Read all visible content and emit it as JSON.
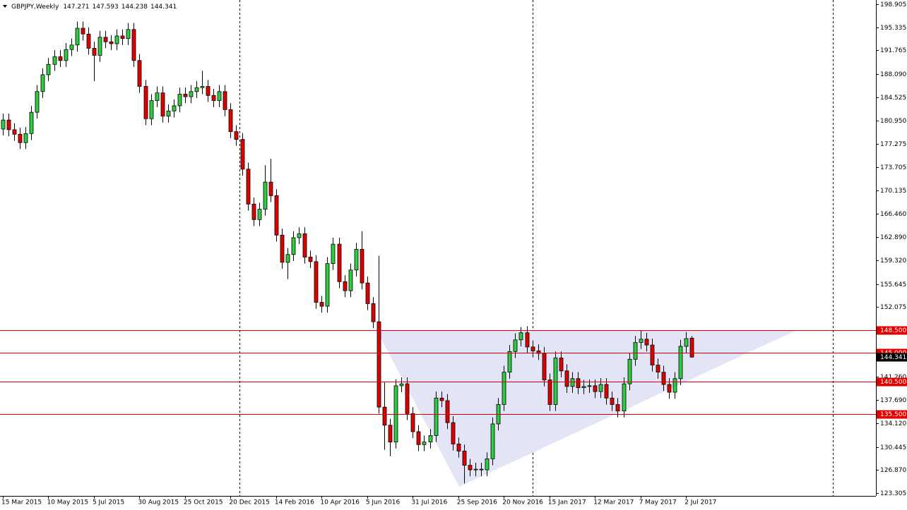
{
  "chart_data": {
    "type": "candlestick",
    "title": "GBPJPY,Weekly",
    "categories": [
      "15 Mar 2015",
      null,
      null,
      null,
      null,
      null,
      null,
      null,
      "10 May 2015",
      null,
      null,
      null,
      null,
      null,
      null,
      null,
      "5 Jul 2015",
      null,
      null,
      null,
      null,
      null,
      null,
      null,
      "30 Aug 2015",
      null,
      null,
      null,
      null,
      null,
      null,
      null,
      "25 Oct 2015",
      null,
      null,
      null,
      null,
      null,
      null,
      null,
      "20 Dec 2015",
      null,
      null,
      null,
      null,
      null,
      null,
      null,
      "14 Feb 2016",
      null,
      null,
      null,
      null,
      null,
      null,
      null,
      "10 Apr 2016",
      null,
      null,
      null,
      null,
      null,
      null,
      null,
      "5 Jun 2016",
      null,
      null,
      null,
      null,
      null,
      null,
      null,
      "31 Jul 2016",
      null,
      null,
      null,
      null,
      null,
      null,
      null,
      "25 Sep 2016",
      null,
      null,
      null,
      null,
      null,
      null,
      null,
      "20 Nov 2016",
      null,
      null,
      null,
      null,
      null,
      null,
      null,
      "15 Jan 2017",
      null,
      null,
      null,
      null,
      null,
      null,
      null,
      "12 Mar 2017",
      null,
      null,
      null,
      null,
      null,
      null,
      null,
      "7 May 2017",
      null,
      null,
      null,
      null,
      null,
      null,
      null,
      "2 Jul 2017",
      null
    ],
    "open": [
      179.6,
      181.0,
      179.5,
      178.8,
      177.5,
      178.9,
      182.2,
      185.4,
      188.0,
      189.6,
      190.8,
      190.2,
      191.9,
      192.6,
      195.2,
      194.3,
      192.1,
      191.0,
      193.8,
      193.1,
      192.8,
      194.0,
      193.6,
      195.0,
      190.2,
      186.2,
      181.2,
      184.0,
      185.2,
      181.6,
      182.4,
      183.2,
      185.0,
      184.6,
      185.4,
      186.0,
      186.2,
      184.8,
      184.0,
      185.4,
      182.6,
      179.2,
      178.0,
      173.4,
      168.0,
      165.6,
      167.2,
      171.4,
      169.3,
      163.2,
      159.0,
      160.2,
      162.8,
      163.4,
      159.8,
      159.1,
      152.8,
      152.2,
      158.8,
      161.8,
      156.0,
      154.6,
      157.8,
      161.0,
      155.8,
      152.6,
      149.8,
      136.6,
      133.8,
      131.2,
      139.9,
      140.2,
      135.6,
      132.8,
      130.8,
      131.2,
      132.2,
      138.0,
      137.6,
      134.2,
      130.9,
      129.8,
      127.6,
      126.9,
      127.0,
      126.9,
      128.6,
      134.0,
      137.0,
      142.0,
      145.2,
      147.0,
      148.1,
      145.9,
      145.3,
      144.9,
      140.8,
      137.0,
      144.2,
      142.2,
      139.8,
      141.0,
      139.6,
      139.8,
      139.9,
      139.0,
      140.1,
      138.0,
      137.0,
      136.0,
      140.2,
      144.0,
      146.6,
      147.1,
      146.2,
      143.1,
      142.0,
      140.1,
      138.9,
      141.0,
      146.0,
      147.271
    ],
    "high": [
      182.0,
      182.0,
      180.5,
      179.8,
      179.9,
      183.2,
      186.4,
      189.0,
      190.6,
      191.8,
      191.8,
      192.9,
      193.6,
      196.2,
      196.2,
      195.3,
      193.1,
      194.8,
      194.8,
      194.1,
      195.0,
      195.0,
      196.0,
      196.0,
      191.2,
      187.2,
      185.0,
      186.2,
      186.2,
      183.4,
      184.2,
      186.0,
      186.0,
      186.4,
      187.0,
      188.6,
      187.2,
      185.8,
      186.4,
      186.4,
      183.6,
      180.2,
      179.0,
      174.4,
      169.0,
      168.2,
      174.0,
      175.0,
      170.3,
      164.2,
      161.2,
      163.8,
      164.4,
      164.4,
      160.8,
      160.1,
      153.8,
      159.8,
      162.8,
      162.8,
      157.0,
      158.8,
      162.0,
      163.8,
      156.8,
      153.6,
      160.0,
      140.4,
      134.8,
      140.9,
      141.2,
      141.2,
      136.6,
      133.8,
      132.2,
      133.2,
      139.0,
      139.0,
      138.6,
      135.2,
      131.9,
      130.8,
      128.6,
      128.0,
      128.0,
      129.6,
      135.0,
      138.0,
      143.0,
      146.2,
      148.0,
      149.0,
      149.1,
      146.9,
      146.3,
      145.9,
      141.8,
      145.2,
      145.2,
      143.2,
      142.0,
      142.0,
      140.8,
      140.9,
      140.9,
      141.1,
      141.1,
      139.0,
      138.0,
      141.2,
      145.0,
      147.6,
      148.5,
      148.1,
      147.2,
      144.1,
      143.0,
      141.1,
      142.0,
      147.0,
      148.2,
      147.593
    ],
    "low": [
      178.6,
      178.5,
      177.8,
      176.5,
      176.5,
      177.9,
      181.2,
      184.4,
      187.0,
      188.6,
      189.2,
      189.2,
      190.9,
      191.6,
      193.3,
      191.1,
      187.0,
      190.0,
      192.1,
      191.8,
      191.8,
      192.6,
      192.6,
      189.2,
      185.2,
      180.2,
      180.2,
      183.0,
      180.6,
      180.6,
      181.4,
      182.2,
      183.6,
      183.6,
      184.4,
      185.0,
      183.8,
      183.0,
      183.0,
      181.6,
      178.2,
      177.0,
      172.4,
      167.0,
      164.6,
      164.6,
      166.2,
      168.3,
      162.2,
      158.0,
      156.4,
      159.2,
      161.8,
      158.8,
      158.1,
      151.8,
      151.2,
      151.2,
      157.8,
      155.0,
      153.6,
      153.6,
      156.8,
      154.8,
      151.6,
      148.8,
      135.6,
      130.0,
      129.0,
      130.2,
      138.9,
      134.6,
      131.8,
      129.8,
      129.8,
      130.2,
      131.2,
      136.6,
      133.2,
      129.9,
      128.8,
      124.8,
      125.9,
      125.9,
      125.9,
      125.9,
      127.6,
      133.0,
      136.0,
      141.0,
      144.2,
      146.0,
      144.9,
      144.3,
      143.9,
      139.8,
      136.0,
      136.0,
      141.2,
      138.8,
      138.8,
      138.6,
      138.6,
      138.8,
      138.0,
      138.0,
      137.0,
      136.0,
      135.0,
      135.0,
      139.2,
      143.0,
      145.6,
      145.2,
      142.1,
      141.0,
      139.1,
      137.9,
      137.9,
      140.0,
      145.0,
      144.238
    ],
    "close": [
      181.0,
      179.5,
      178.8,
      177.5,
      178.9,
      182.2,
      185.4,
      188.0,
      189.6,
      190.8,
      190.2,
      191.9,
      192.6,
      195.2,
      194.3,
      192.1,
      191.0,
      193.8,
      193.1,
      192.8,
      194.0,
      193.6,
      195.0,
      190.2,
      186.2,
      181.2,
      184.0,
      185.2,
      181.6,
      182.4,
      183.2,
      185.0,
      184.6,
      185.4,
      186.0,
      186.2,
      184.8,
      184.0,
      185.4,
      182.6,
      179.2,
      178.0,
      173.4,
      168.0,
      165.6,
      167.2,
      171.4,
      169.3,
      163.2,
      159.0,
      160.2,
      162.8,
      163.4,
      159.8,
      159.1,
      152.8,
      152.2,
      158.8,
      161.8,
      156.0,
      154.6,
      157.8,
      161.0,
      155.8,
      152.6,
      149.8,
      136.6,
      133.8,
      131.2,
      139.9,
      140.2,
      135.6,
      132.8,
      130.8,
      131.2,
      132.2,
      138.0,
      137.6,
      134.2,
      130.9,
      129.8,
      127.6,
      126.9,
      127.0,
      126.9,
      128.6,
      134.0,
      137.0,
      142.0,
      145.2,
      147.0,
      148.1,
      145.9,
      145.3,
      144.9,
      140.8,
      137.0,
      144.2,
      142.2,
      139.8,
      141.0,
      139.6,
      139.8,
      139.9,
      139.0,
      140.1,
      138.0,
      137.0,
      136.0,
      140.2,
      144.0,
      146.6,
      147.1,
      146.2,
      143.1,
      142.0,
      140.1,
      138.9,
      141.0,
      146.0,
      147.2,
      144.341
    ],
    "close_label": "144.341",
    "up_color": "#2ecc40",
    "down_color": "#e00000",
    "level_color": "#e00000",
    "levels": [
      {
        "value": 148.5,
        "label": "148.500"
      },
      {
        "value": 145,
        "label": "145.000"
      },
      {
        "value": 140.5,
        "label": "140.500"
      },
      {
        "value": 135.5,
        "label": "135.500"
      }
    ],
    "ylim": [
      123.305,
      198.905
    ],
    "yticks": [
      {
        "value": 198.905,
        "label": "198.905"
      },
      {
        "value": 195.335,
        "label": "195.335"
      },
      {
        "value": 191.765,
        "label": "191.765"
      },
      {
        "value": 188.09,
        "label": "188.090"
      },
      {
        "value": 184.525,
        "label": "184.525"
      },
      {
        "value": 180.95,
        "label": "180.950"
      },
      {
        "value": 177.275,
        "label": "177.275"
      },
      {
        "value": 173.705,
        "label": "173.705"
      },
      {
        "value": 170.135,
        "label": "170.135"
      },
      {
        "value": 166.46,
        "label": "166.460"
      },
      {
        "value": 162.89,
        "label": "162.890"
      },
      {
        "value": 159.32,
        "label": "159.320"
      },
      {
        "value": 155.645,
        "label": "155.645"
      },
      {
        "value": 152.075,
        "label": "152.075"
      },
      {
        "value": 141.26,
        "label": "141.260"
      },
      {
        "value": 137.69,
        "label": "137.690"
      },
      {
        "value": 134.12,
        "label": "134.120"
      },
      {
        "value": 130.445,
        "label": "130.445"
      },
      {
        "value": 126.87,
        "label": "126.870"
      },
      {
        "value": 123.305,
        "label": "123.305"
      }
    ],
    "grid": false
  }
}
